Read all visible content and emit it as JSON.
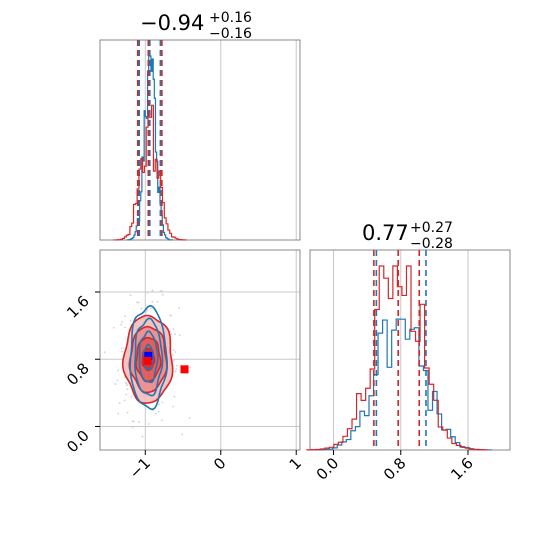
{
  "chart_data": {
    "type": "corner",
    "colors": {
      "series_a": "#1f77b4",
      "series_b": "#d62728",
      "truth_a": "#0000ff",
      "truth_b": "#ff0000",
      "grid": "#c8c8c8",
      "scatter": "#cfcfe6"
    },
    "parameters": [
      {
        "title_main": "−0.94",
        "title_plus": "+0.16",
        "title_minus": "−0.16",
        "range": [
          -1.6,
          1.05
        ],
        "ticks": [
          -1,
          0,
          1
        ],
        "tick_labels": [
          "−1",
          "0",
          "1"
        ]
      },
      {
        "title_main": "0.77",
        "title_plus": "+0.27",
        "title_minus": "−0.28",
        "range": [
          -0.28,
          2.1
        ],
        "ticks": [
          0.0,
          0.8,
          1.6
        ],
        "tick_labels": [
          "0.0",
          "0.8",
          "1.6"
        ]
      }
    ],
    "marginals": [
      {
        "param": 0,
        "series": [
          {
            "color": "series_a",
            "mean": -0.94,
            "sigma": 0.075,
            "peak": 1.0,
            "quantiles": [
              -1.08,
              -0.94,
              -0.8
            ]
          },
          {
            "color": "series_b",
            "mean": -0.94,
            "sigma": 0.12,
            "peak": 0.6,
            "quantiles": [
              -1.1,
              -0.96,
              -0.78
            ]
          }
        ]
      },
      {
        "param": 1,
        "series": [
          {
            "color": "series_a",
            "mean": 0.8,
            "sigma": 0.27,
            "peak": 0.8,
            "quantiles": [
              0.51,
              0.77,
              1.1
            ]
          },
          {
            "color": "series_b",
            "mean": 0.76,
            "sigma": 0.27,
            "peak": 1.0,
            "quantiles": [
              0.48,
              0.77,
              1.02
            ]
          }
        ]
      }
    ],
    "joint": {
      "series": [
        {
          "color": "series_a",
          "center": [
            -0.96,
            0.82
          ],
          "sigma": [
            0.12,
            0.3
          ],
          "levels": [
            0.5,
            1.0,
            1.5,
            2.0
          ],
          "filled": false
        },
        {
          "color": "series_b",
          "center": [
            -0.96,
            0.8
          ],
          "sigma": [
            0.16,
            0.26
          ],
          "levels": [
            0.5,
            1.0,
            1.5,
            2.0
          ],
          "filled": true
        }
      ],
      "truth_points": [
        {
          "color": "truth_a",
          "x": -0.96,
          "y": 0.84
        },
        {
          "color": "truth_b",
          "x": -0.97,
          "y": 0.78
        },
        {
          "color": "truth_b",
          "x": -0.48,
          "y": 0.68
        }
      ]
    }
  }
}
